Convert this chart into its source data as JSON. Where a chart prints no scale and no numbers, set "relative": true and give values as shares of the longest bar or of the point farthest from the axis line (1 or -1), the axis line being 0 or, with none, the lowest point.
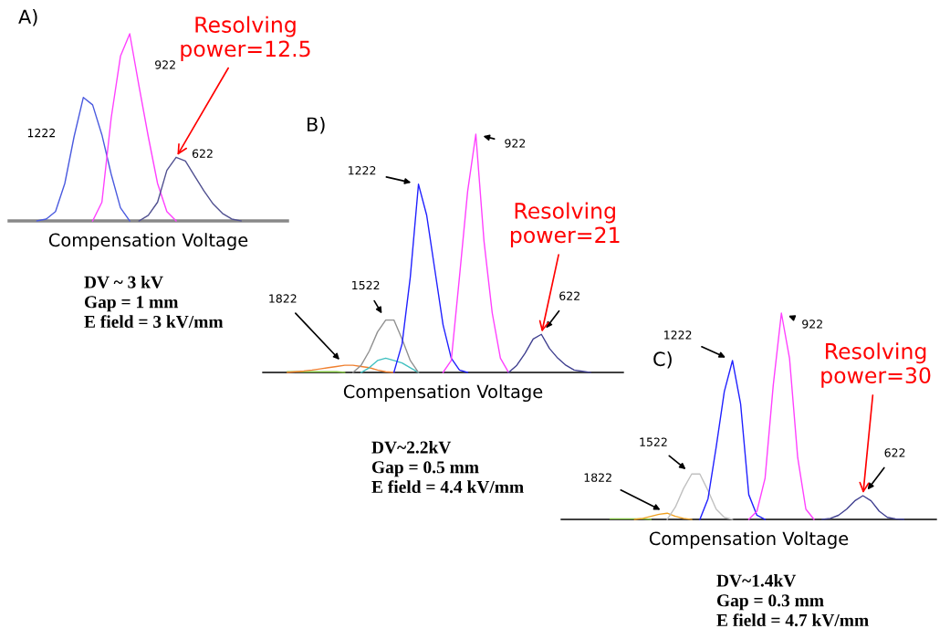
{
  "chart_data": [
    {
      "type": "line",
      "title": "A)",
      "xlabel": "Compensation Voltage",
      "relative": true,
      "categories": [
        null,
        null,
        null,
        null,
        null,
        null,
        null,
        null,
        null,
        null,
        null,
        null,
        null,
        null,
        null,
        null,
        null,
        null,
        null,
        null,
        null,
        null,
        null,
        null,
        null,
        null,
        null,
        null,
        null
      ],
      "series": [
        {
          "name": "1222",
          "color": "#4a5adf",
          "values": [
            null,
            null,
            0,
            0.01,
            0.05,
            0.2,
            0.45,
            0.66,
            0.62,
            0.46,
            0.25,
            0.07,
            0,
            null,
            null,
            null,
            null,
            null,
            null,
            null,
            null,
            null,
            null,
            null,
            null,
            null,
            null,
            null,
            null
          ]
        },
        {
          "name": "922",
          "color": "#ff40ff",
          "values": [
            null,
            null,
            null,
            null,
            null,
            null,
            null,
            null,
            0,
            0.1,
            0.55,
            0.88,
            1.0,
            0.72,
            0.45,
            0.2,
            0.05,
            0,
            null,
            null,
            null,
            null,
            null,
            null,
            null,
            null,
            null,
            null,
            null
          ]
        },
        {
          "name": "622",
          "color": "#505090",
          "values": [
            null,
            null,
            null,
            null,
            null,
            null,
            null,
            null,
            null,
            null,
            null,
            null,
            null,
            0,
            0.03,
            0.1,
            0.27,
            0.34,
            0.32,
            0.24,
            0.16,
            0.09,
            0.04,
            0.01,
            0,
            null,
            null,
            null,
            null
          ]
        }
      ],
      "annotations": [
        "Resolving\npower=12.5",
        "DV ~ 3 kV\nGap = 1 mm\nE field = 3 kV/mm"
      ]
    },
    {
      "type": "line",
      "title": "B)",
      "xlabel": "Compensation Voltage",
      "relative": true,
      "categories": [
        null,
        null,
        null,
        null,
        null,
        null,
        null,
        null,
        null,
        null,
        null,
        null,
        null,
        null,
        null,
        null,
        null,
        null,
        null,
        null,
        null,
        null,
        null,
        null,
        null,
        null,
        null,
        null,
        null,
        null,
        null,
        null,
        null,
        null,
        null,
        null,
        null,
        null,
        null,
        null,
        null,
        null,
        null
      ],
      "series": [
        {
          "color": "#80c040",
          "values": [
            null,
            null,
            0.003,
            0.003,
            0.003,
            0.003,
            0.003,
            0.003,
            0.003,
            0,
            null,
            null,
            null,
            null,
            null,
            null,
            null,
            null,
            null,
            null,
            null,
            null,
            null,
            null,
            null,
            null,
            null,
            null,
            null,
            null,
            null,
            null,
            null,
            null,
            null,
            null,
            null,
            null,
            null,
            null,
            null,
            null,
            null
          ]
        },
        {
          "name": "1822",
          "color": "#f08030",
          "values": [
            null,
            null,
            0,
            0.003,
            0.006,
            0.01,
            0.015,
            0.02,
            0.025,
            0.03,
            0.03,
            0.025,
            0.02,
            0.01,
            0.003,
            0,
            null,
            null,
            null,
            null,
            null,
            null,
            null,
            null,
            null,
            null,
            null,
            null,
            null,
            null,
            null,
            null,
            null,
            null,
            null,
            null,
            null,
            null,
            null,
            null,
            null,
            null,
            null
          ]
        },
        {
          "color": "#40c0c0",
          "values": [
            null,
            null,
            null,
            null,
            null,
            null,
            null,
            null,
            null,
            null,
            null,
            0,
            0.02,
            0.05,
            0.06,
            0.05,
            0.04,
            0.02,
            0,
            null,
            null,
            null,
            null,
            null,
            null,
            null,
            null,
            null,
            null,
            null,
            null,
            null,
            null,
            null,
            null,
            null,
            null,
            null,
            null,
            null,
            null,
            null,
            null
          ]
        },
        {
          "name": "1522",
          "color": "#909090",
          "values": [
            null,
            null,
            null,
            null,
            null,
            null,
            null,
            null,
            null,
            null,
            0,
            0.03,
            0.09,
            0.17,
            0.22,
            0.22,
            0.14,
            0.05,
            0,
            null,
            null,
            null,
            null,
            null,
            null,
            null,
            null,
            null,
            null,
            null,
            null,
            null,
            null,
            null,
            null,
            null,
            null,
            null,
            null,
            null,
            null,
            null,
            null
          ]
        },
        {
          "name": "1222",
          "color": "#2020ff",
          "values": [
            null,
            null,
            null,
            null,
            null,
            null,
            null,
            null,
            null,
            null,
            null,
            null,
            null,
            null,
            null,
            0,
            0.12,
            0.4,
            0.79,
            0.66,
            0.43,
            0.2,
            0.06,
            0.01,
            0,
            null,
            null,
            null,
            null,
            null,
            null,
            null,
            null,
            null,
            null,
            null,
            null,
            null,
            null,
            null,
            null,
            null,
            null
          ]
        },
        {
          "name": "922",
          "color": "#ff40ff",
          "values": [
            null,
            null,
            null,
            null,
            null,
            null,
            null,
            null,
            null,
            null,
            null,
            null,
            null,
            null,
            null,
            null,
            null,
            null,
            null,
            null,
            null,
            0,
            0.05,
            0.4,
            0.76,
            1.0,
            0.55,
            0.25,
            0.06,
            0,
            null,
            null,
            null,
            null,
            null,
            null,
            null,
            null,
            null,
            null,
            null,
            null,
            null
          ]
        },
        {
          "name": "622",
          "color": "#404090",
          "values": [
            null,
            null,
            null,
            null,
            null,
            null,
            null,
            null,
            null,
            null,
            null,
            null,
            null,
            null,
            null,
            null,
            null,
            null,
            null,
            null,
            null,
            null,
            null,
            null,
            null,
            null,
            null,
            null,
            null,
            0,
            0.03,
            0.08,
            0.14,
            0.16,
            0.1,
            0.06,
            0.03,
            0.01,
            0.005,
            0,
            null,
            null,
            null
          ]
        }
      ],
      "annotations": [
        "Resolving\npower=21",
        "DV~2.2kV\nGap = 0.5 mm\nE field = 4.4 kV/mm"
      ]
    },
    {
      "type": "line",
      "title": "C)",
      "xlabel": "Compensation Voltage",
      "relative": true,
      "categories": [
        null,
        null,
        null,
        null,
        null,
        null,
        null,
        null,
        null,
        null,
        null,
        null,
        null,
        null,
        null,
        null,
        null,
        null,
        null,
        null,
        null,
        null,
        null,
        null,
        null,
        null,
        null,
        null,
        null,
        null,
        null,
        null,
        null,
        null,
        null,
        null,
        null,
        null,
        null,
        null,
        null,
        null,
        null,
        null,
        null
      ],
      "series": [
        {
          "color": "#80c040",
          "values": [
            null,
            null,
            null,
            null,
            null,
            0.003,
            0.003,
            0.003,
            0.003,
            0.003,
            0,
            null,
            null,
            null,
            null,
            null,
            null,
            null,
            null,
            null,
            null,
            null,
            null,
            null,
            null,
            null,
            null,
            null,
            null,
            null,
            null,
            null,
            null,
            null,
            null,
            null,
            null,
            null,
            null,
            null,
            null,
            null,
            null,
            null,
            null
          ]
        },
        {
          "name": "1822",
          "color": "#f0a020",
          "values": [
            null,
            null,
            null,
            null,
            null,
            null,
            null,
            null,
            0,
            0.005,
            0.015,
            0.025,
            0.03,
            0.015,
            0.005,
            0,
            null,
            null,
            null,
            null,
            null,
            null,
            null,
            null,
            null,
            null,
            null,
            null,
            null,
            null,
            null,
            null,
            null,
            null,
            null,
            null,
            null,
            null,
            null,
            null,
            null,
            null,
            null,
            null,
            null
          ]
        },
        {
          "name": "1522",
          "color": "#c0c0c0",
          "values": [
            null,
            null,
            null,
            null,
            null,
            null,
            null,
            null,
            null,
            null,
            null,
            null,
            0,
            0.06,
            0.15,
            0.22,
            0.22,
            0.14,
            0.05,
            0.01,
            0,
            null,
            null,
            null,
            null,
            null,
            null,
            null,
            null,
            null,
            null,
            null,
            null,
            null,
            null,
            null,
            null,
            null,
            null,
            null,
            null,
            null,
            null,
            null,
            null
          ]
        },
        {
          "name": "1222",
          "color": "#2020ff",
          "values": [
            null,
            null,
            null,
            null,
            null,
            null,
            null,
            null,
            null,
            null,
            null,
            null,
            null,
            null,
            null,
            null,
            0,
            0.1,
            0.35,
            0.62,
            0.77,
            0.56,
            0.12,
            0.02,
            0,
            null,
            null,
            null,
            null,
            null,
            null,
            null,
            null,
            null,
            null,
            null,
            null,
            null,
            null,
            null,
            null,
            null,
            null,
            null,
            null
          ]
        },
        {
          "name": "922",
          "color": "#ff40ff",
          "values": [
            null,
            null,
            null,
            null,
            null,
            null,
            null,
            null,
            null,
            null,
            null,
            null,
            null,
            null,
            null,
            null,
            null,
            null,
            null,
            null,
            null,
            null,
            0,
            0.04,
            0.2,
            0.65,
            1.0,
            0.78,
            0.3,
            0.05,
            0,
            null,
            null,
            null,
            null,
            null,
            null,
            null,
            null,
            null,
            null,
            null,
            null,
            null,
            null
          ]
        },
        {
          "name": "622",
          "color": "#404090",
          "values": [
            null,
            null,
            null,
            null,
            null,
            null,
            null,
            null,
            null,
            null,
            null,
            null,
            null,
            null,
            null,
            null,
            null,
            null,
            null,
            null,
            null,
            null,
            null,
            null,
            null,
            null,
            null,
            null,
            null,
            null,
            null,
            0,
            0.005,
            0.02,
            0.05,
            0.09,
            0.115,
            0.09,
            0.04,
            0.01,
            0.003,
            0,
            null,
            null,
            null
          ]
        }
      ],
      "annotations": [
        "Resolving\npower=30",
        "DV~1.4kV\nGap = 0.3 mm\nE field = 4.7 kV/mm"
      ]
    }
  ]
}
